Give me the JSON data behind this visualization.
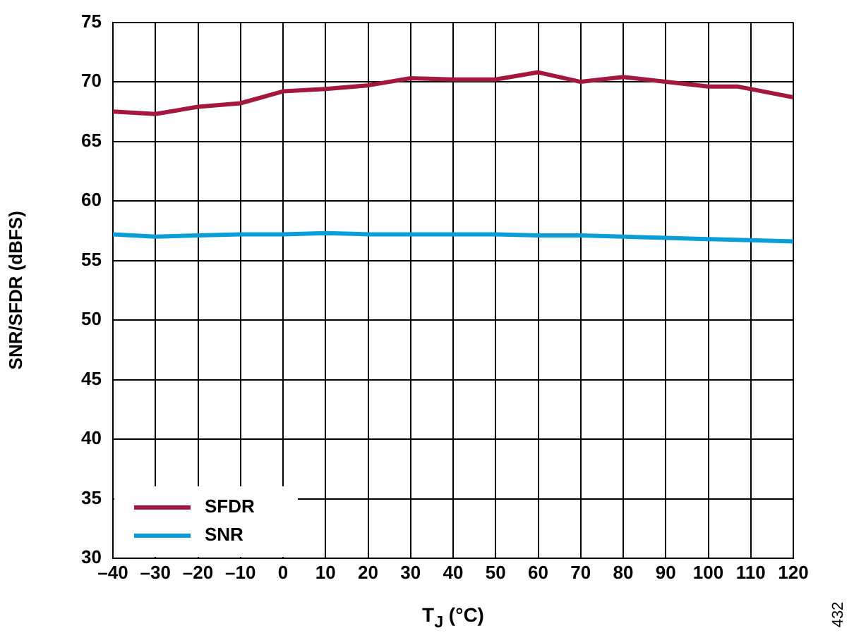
{
  "chart_data": {
    "type": "line",
    "xlabel": "T$_{J}$ (°C)",
    "ylabel": "SNR/SFDR (dBFS)",
    "x": [
      -40,
      -30,
      -20,
      -10,
      0,
      10,
      20,
      30,
      40,
      50,
      60,
      70,
      80,
      90,
      100,
      107,
      120
    ],
    "series": [
      {
        "name": "SFDR",
        "color": "#a4173f",
        "values": [
          67.5,
          67.3,
          67.9,
          68.2,
          69.2,
          69.4,
          69.7,
          70.3,
          70.2,
          70.2,
          70.8,
          70.0,
          70.4,
          70.0,
          69.6,
          69.6,
          68.7
        ]
      },
      {
        "name": "SNR",
        "color": "#0b9dd6",
        "x": [
          -40,
          -30,
          -20,
          -10,
          0,
          10,
          20,
          30,
          40,
          50,
          60,
          70,
          80,
          90,
          100,
          120
        ],
        "values": [
          57.2,
          57.0,
          57.1,
          57.2,
          57.2,
          57.3,
          57.2,
          57.2,
          57.2,
          57.2,
          57.1,
          57.1,
          57.0,
          56.9,
          56.8,
          56.6
        ]
      }
    ],
    "xlim": [
      -40,
      120
    ],
    "xticks": [
      {
        "value": -40,
        "label": "–40"
      },
      {
        "value": -30,
        "label": "–30"
      },
      {
        "value": -20,
        "label": "–20"
      },
      {
        "value": -10,
        "label": "–10"
      },
      0,
      10,
      20,
      30,
      40,
      50,
      60,
      70,
      80,
      90,
      100,
      110,
      120
    ],
    "ylim": [
      30,
      75
    ],
    "yticks": [
      30,
      35,
      40,
      45,
      50,
      55,
      60,
      65,
      70,
      75
    ],
    "grid": true,
    "legend": "bottom left",
    "marker": "none",
    "line_style": "solid",
    "annotations": [
      "432"
    ]
  }
}
